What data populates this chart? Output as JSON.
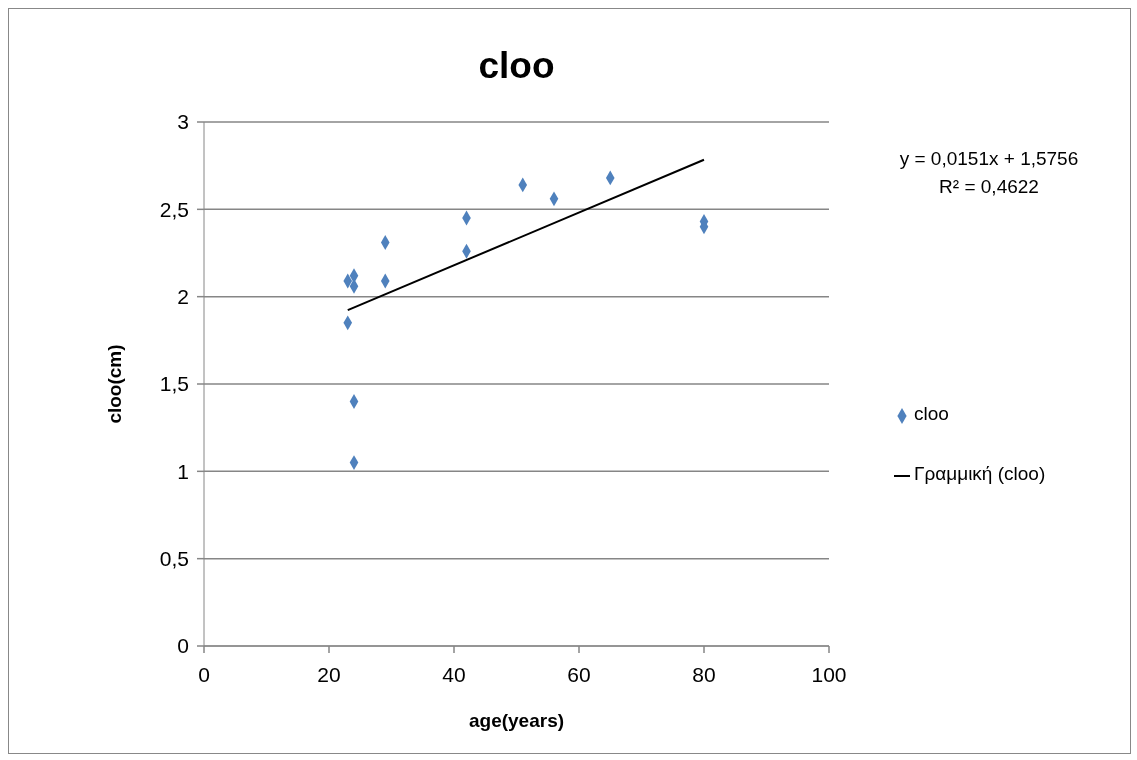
{
  "chart_data": {
    "type": "scatter",
    "title": "cloo",
    "xlabel": "age(years)",
    "ylabel": "cloo(cm)",
    "series": [
      {
        "name": "cloo",
        "type": "scatter",
        "color": "#4f81bd",
        "marker": "diamond",
        "x": [
          23,
          24,
          24,
          23,
          24,
          24,
          29,
          29,
          42,
          42,
          51,
          56,
          65,
          80,
          80
        ],
        "values": [
          2.09,
          2.12,
          2.06,
          1.85,
          1.4,
          1.05,
          2.31,
          2.09,
          2.45,
          2.26,
          2.64,
          2.56,
          2.68,
          2.43,
          2.4
        ]
      },
      {
        "name": "Γραμμική (cloo)",
        "type": "line",
        "color": "#000000",
        "marker": "none",
        "x": [
          23,
          80
        ],
        "values": [
          1.923,
          2.784
        ]
      }
    ],
    "xlim": [
      0,
      100
    ],
    "xticks": [
      0,
      20,
      40,
      60,
      80,
      100
    ],
    "ylim": [
      0,
      3
    ],
    "yticks": [
      0,
      {
        "value": 0.5,
        "label": "0,5"
      },
      1,
      {
        "value": 1.5,
        "label": "1,5"
      },
      2,
      {
        "value": 2.5,
        "label": "2,5"
      },
      3
    ],
    "grid": "y",
    "legend": "right",
    "annotations": [
      "y = 0,0151x + 1,5756",
      "R² = 0,4622"
    ]
  }
}
